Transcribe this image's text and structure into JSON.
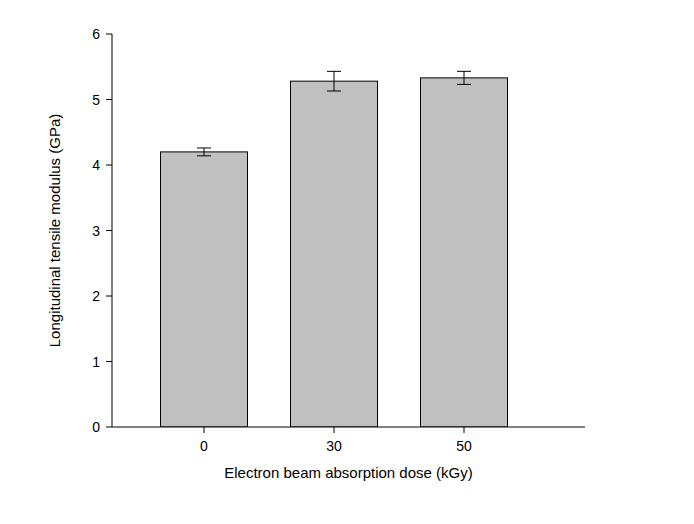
{
  "chart_data": {
    "type": "bar",
    "x_label": "Electron beam absorption dose (kGy)",
    "y_label": "Longitudinal tensile modulus (GPa)",
    "categories": [
      "0",
      "30",
      "50"
    ],
    "values": [
      4.2,
      5.28,
      5.33
    ],
    "errors": [
      0.06,
      0.15,
      0.1
    ],
    "color": "#c0c0c0",
    "ylim": [
      0,
      6
    ],
    "yticks": [
      0,
      1,
      2,
      3,
      4,
      5,
      6
    ],
    "grid": false
  }
}
